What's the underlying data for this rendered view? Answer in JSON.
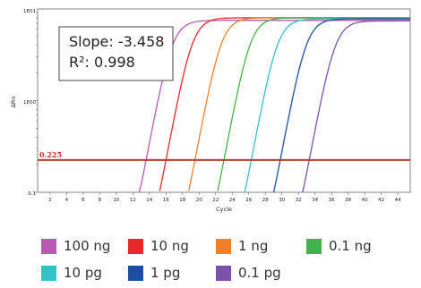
{
  "chart_data": {
    "type": "line",
    "title": "",
    "xlabel": "Cycle",
    "ylabel": "ΔRn",
    "x_ticks": [
      2,
      4,
      6,
      8,
      10,
      12,
      14,
      16,
      18,
      20,
      22,
      24,
      26,
      28,
      30,
      32,
      34,
      36,
      38,
      40,
      42,
      44
    ],
    "y_ticks": [
      "1E01",
      "1E00",
      "0.1"
    ],
    "xlim": [
      0.5,
      45.5
    ],
    "ylim": [
      0.1,
      10
    ],
    "y_scale": "log",
    "threshold": {
      "label": "0.225",
      "value": 0.225,
      "color": "#c0392b"
    },
    "annotation": {
      "slope": "Slope: -3.458",
      "r2": "R²: 0.998"
    },
    "series": [
      {
        "name": "100 ng",
        "color": "#b85ab2",
        "ct": 13.6,
        "plateau": 7.5,
        "width": 8
      },
      {
        "name": "10 ng",
        "color": "#e8262c",
        "ct": 16.0,
        "plateau": 8.0,
        "width": 8
      },
      {
        "name": "1 ng",
        "color": "#f07f2a",
        "ct": 19.5,
        "plateau": 8.0,
        "width": 8
      },
      {
        "name": "0.1 ng",
        "color": "#44b24a",
        "ct": 23.0,
        "plateau": 8.0,
        "width": 8
      },
      {
        "name": "10 pg",
        "color": "#33c2c8",
        "ct": 26.3,
        "plateau": 7.8,
        "width": 8
      },
      {
        "name": "1 pg",
        "color": "#1e4fa3",
        "ct": 29.8,
        "plateau": 7.8,
        "width": 8
      },
      {
        "name": "0.1 pg",
        "color": "#7b52a8",
        "ct": 33.3,
        "plateau": 7.4,
        "width": 8
      }
    ]
  }
}
